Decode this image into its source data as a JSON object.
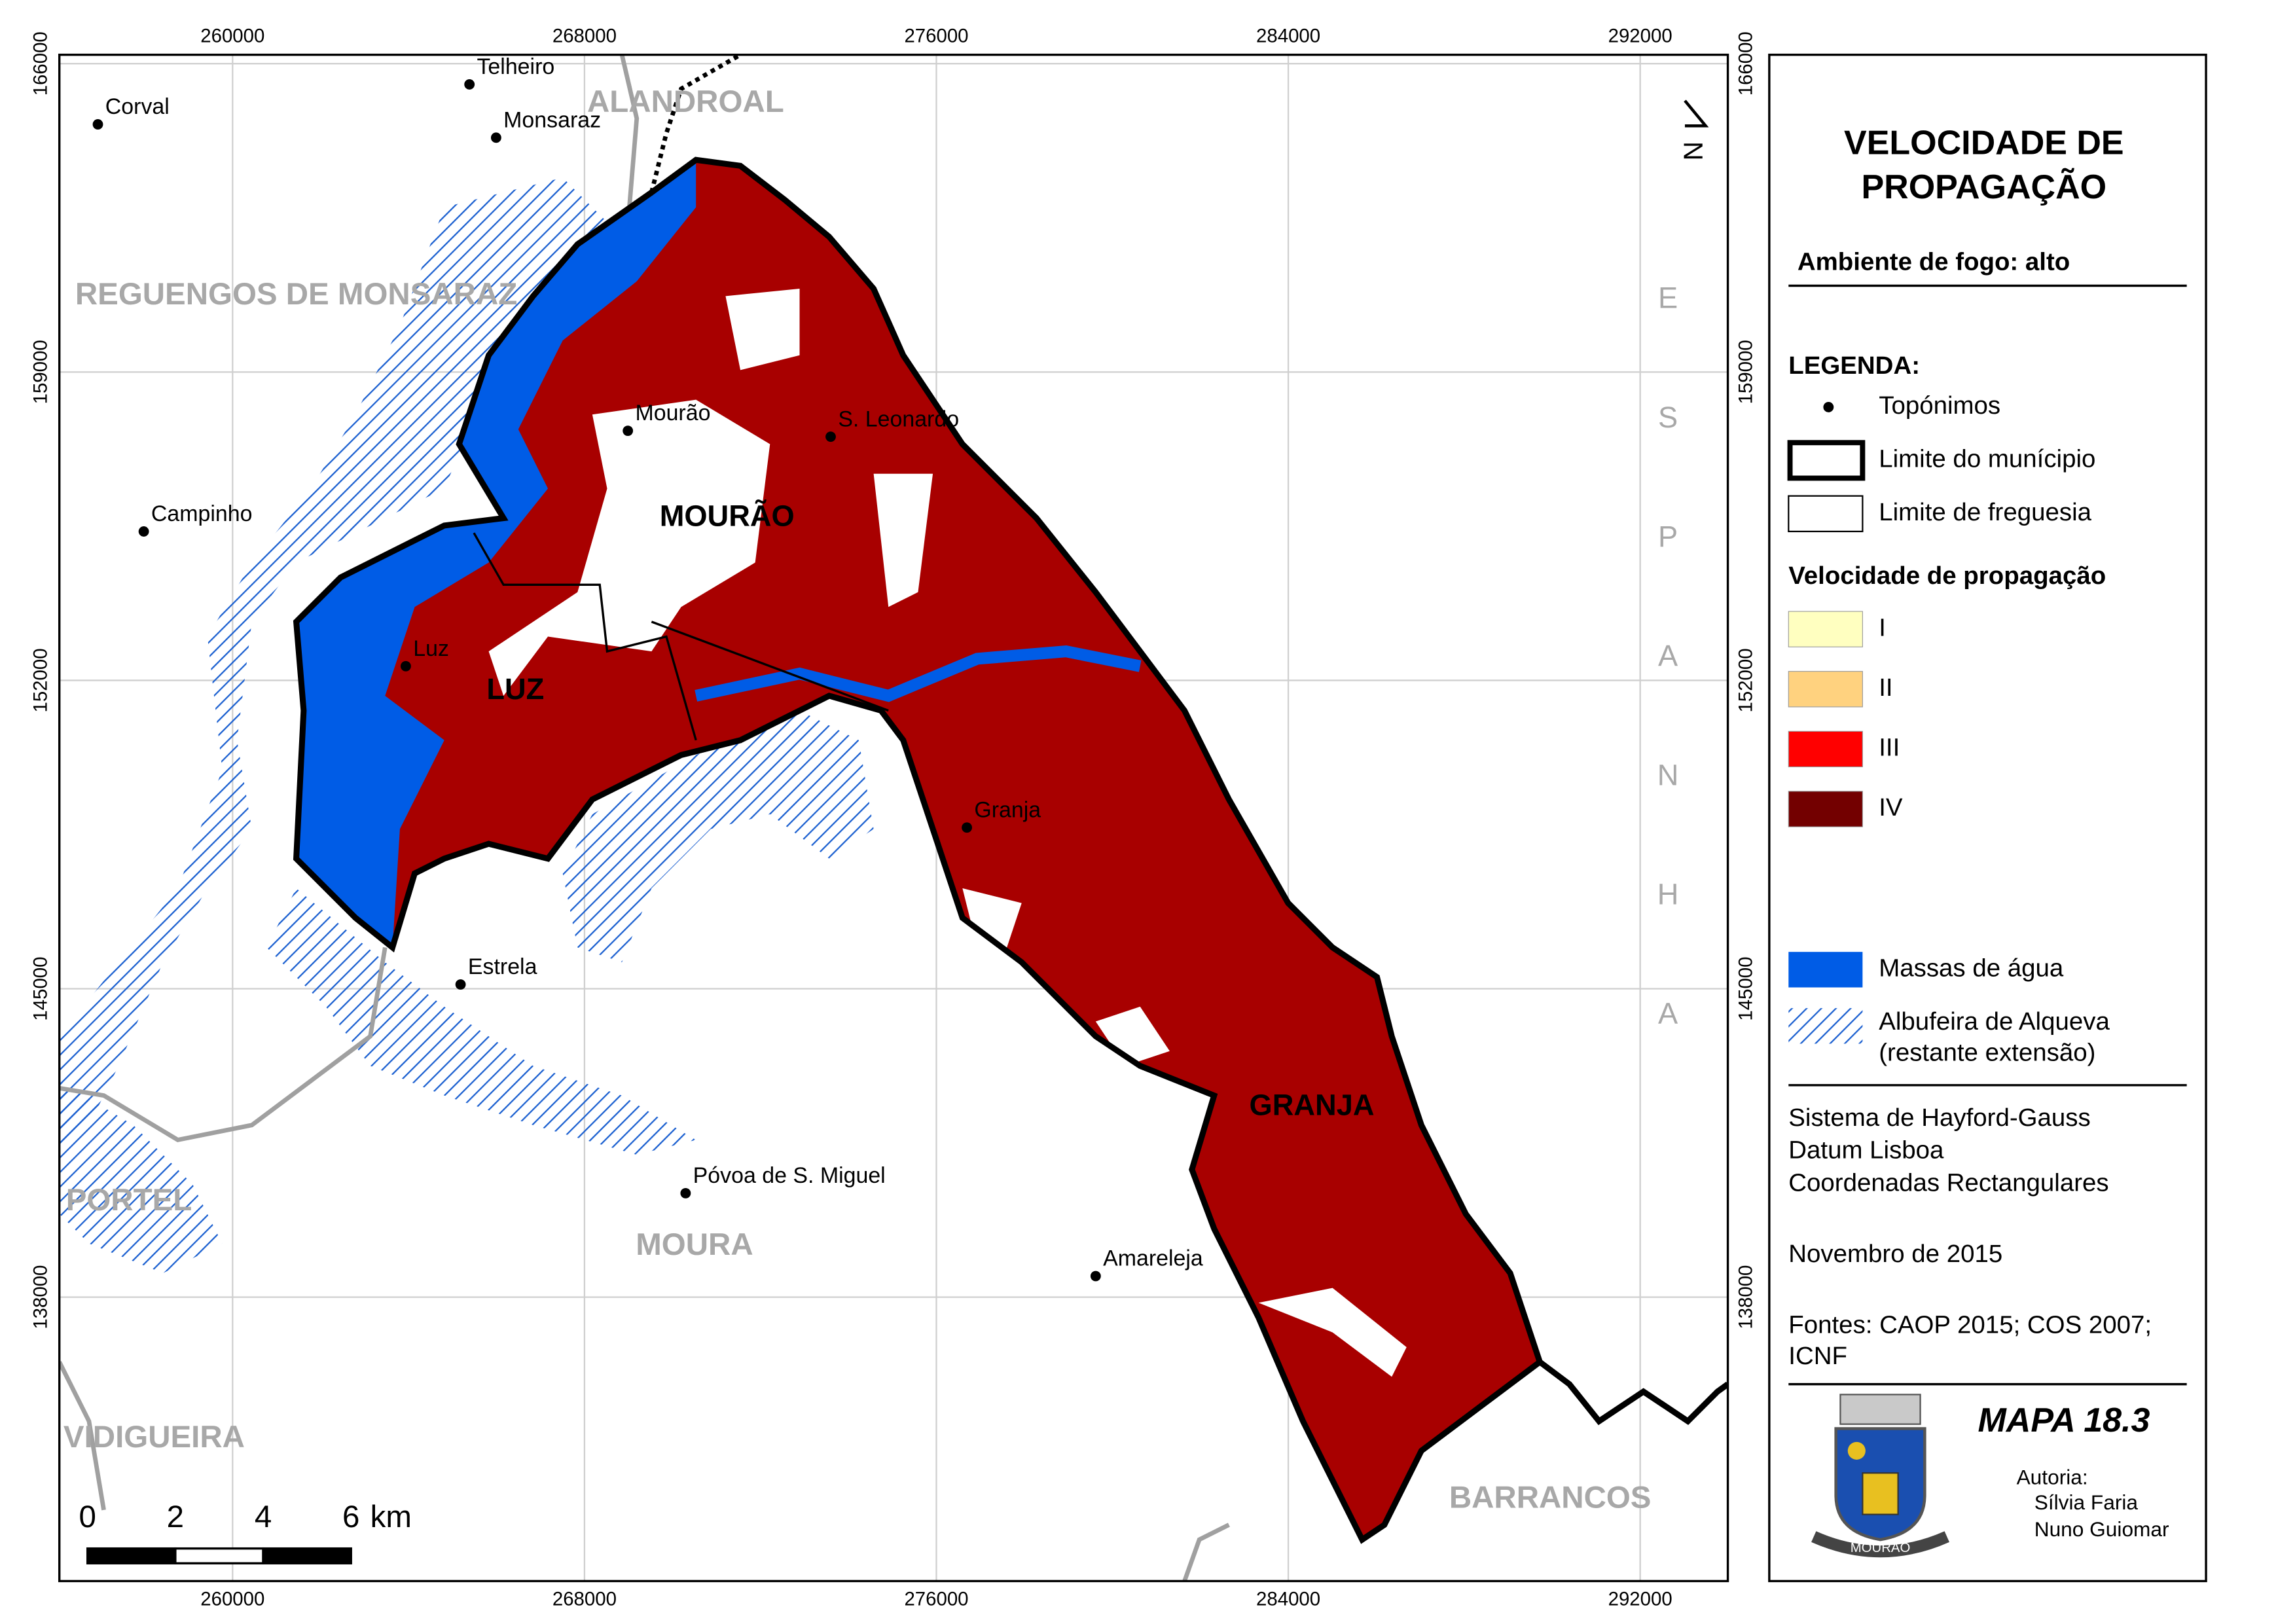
{
  "legend": {
    "title": [
      "VELOCIDADE DE",
      "PROPAGAÇÃO"
    ],
    "subtitle": "Ambiente de fogo: alto",
    "heading": "LEGENDA:",
    "items": [
      "Topónimos",
      "Limite do munícipio",
      "Limite de freguesia"
    ],
    "speed_heading": "Velocidade de propagação",
    "speed_classes": [
      {
        "label": "I",
        "color": "#ffffc0"
      },
      {
        "label": "II",
        "color": "#ffd27f"
      },
      {
        "label": "III",
        "color": "#ff0000"
      },
      {
        "label": "IV",
        "color": "#730000"
      }
    ],
    "water": {
      "label": "Massas de água",
      "color": "#005ce6"
    },
    "reservoir": [
      "Albufeira de Alqueva",
      "(restante extensão)"
    ]
  },
  "notes": [
    "Sistema de Hayford-Gauss",
    "Datum Lisboa",
    "Coordenadas Rectangulares"
  ],
  "date": "Novembro de 2015",
  "sources": [
    "Fontes: CAOP 2015; COS 2007;",
    "ICNF"
  ],
  "map_id": "MAPA 18.3",
  "authorship": {
    "label": "Autoria:",
    "authors": [
      "Sílvia Faria",
      "Nuno Guiomar"
    ]
  },
  "coat_of_arms_text": "MOURÃO",
  "map": {
    "xticks": [
      260000,
      268000,
      276000,
      284000,
      292000
    ],
    "yticks": [
      166000,
      159000,
      152000,
      145000,
      138000
    ],
    "towns": [
      "Corval",
      "Telheiro",
      "Monsaraz",
      "Mourão",
      "S. Leonardo",
      "Campinho",
      "Luz",
      "Granja",
      "Estrela",
      "Póvoa de S. Miguel",
      "Amareleja"
    ],
    "parishes": [
      "MOURÃO",
      "LUZ",
      "GRANJA"
    ],
    "municipalities": [
      "ALANDROAL",
      "REGUENGOS DE MONSARAZ",
      "PORTEL",
      "VIDIGUEIRA",
      "MOURA",
      "BARRANCOS"
    ],
    "country": "ESPANHA",
    "north": "N",
    "scale": {
      "ticks": [
        0,
        2,
        4,
        6
      ],
      "unit": "km"
    }
  }
}
